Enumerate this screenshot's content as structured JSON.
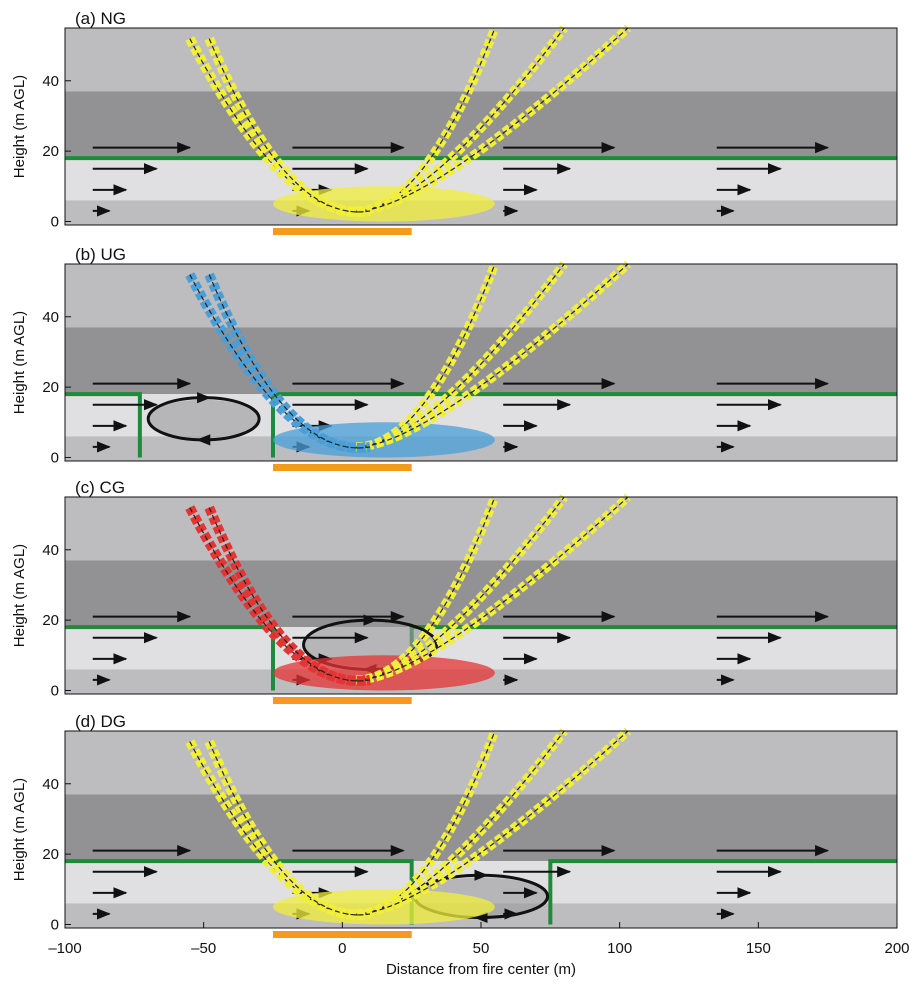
{
  "chart_data": [
    {
      "type": "schematic",
      "title": "(a) NG",
      "ylabel": "Height (m AGL)",
      "xlim": [
        -100,
        200
      ],
      "ylim": [
        -1,
        55
      ],
      "yticks": [
        0,
        20,
        40
      ],
      "color": "#f2ef3a"
    },
    {
      "type": "schematic",
      "title": "(b) UG",
      "ylabel": "Height (m AGL)",
      "xlim": [
        -100,
        200
      ],
      "ylim": [
        -1,
        55
      ],
      "yticks": [
        0,
        20,
        40
      ],
      "color": "#4a9fd8"
    },
    {
      "type": "schematic",
      "title": "(c) CG",
      "ylabel": "Height (m AGL)",
      "xlim": [
        -100,
        200
      ],
      "ylim": [
        -1,
        55
      ],
      "yticks": [
        0,
        20,
        40
      ],
      "color": "#e43434"
    },
    {
      "type": "schematic",
      "title": "(d) DG",
      "ylabel": "Height (m AGL)",
      "xlabel": "Distance from fire center (m)",
      "xlim": [
        -100,
        200
      ],
      "ylim": [
        -1,
        55
      ],
      "yticks": [
        0,
        20,
        40
      ],
      "color": "#f2ef3a",
      "xticks": [
        {
          "value": -100,
          "label": "–100"
        },
        {
          "value": -50,
          "label": "–50"
        },
        0,
        50,
        100,
        150,
        200
      ]
    }
  ]
}
